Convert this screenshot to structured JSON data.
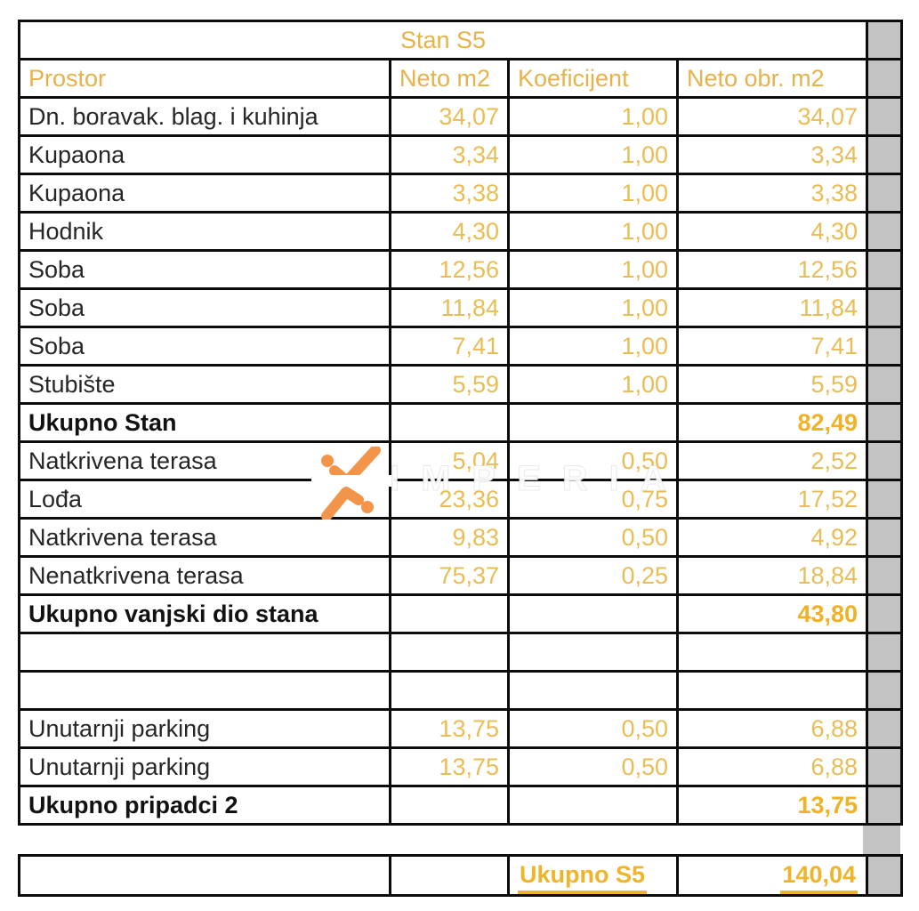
{
  "meta": {
    "colors": {
      "header_gold": "#E5B34A",
      "value_gold": "#E9BD55",
      "total_gold": "#F0B125",
      "underline_gold": "#EFB429",
      "gray_cell": "#C3C3C3",
      "border": "#0B0B0B",
      "label_text": "#262626",
      "logo_orange": "#F2944A"
    }
  },
  "table": {
    "title": "Stan S5",
    "headers": {
      "prostor": "Prostor",
      "neto_m2": "Neto m2",
      "koeficijent": "Koeficijent",
      "neto_obr_m2": "Neto obr. m2"
    },
    "rows": [
      {
        "label": "Dn. boravak. blag. i kuhinja",
        "neto_m2": "34,07",
        "koeficijent": "1,00",
        "neto_obr_m2": "34,07",
        "bold": false
      },
      {
        "label": "Kupaona",
        "neto_m2": "3,34",
        "koeficijent": "1,00",
        "neto_obr_m2": "3,34",
        "bold": false
      },
      {
        "label": "Kupaona",
        "neto_m2": "3,38",
        "koeficijent": "1,00",
        "neto_obr_m2": "3,38",
        "bold": false
      },
      {
        "label": "Hodnik",
        "neto_m2": "4,30",
        "koeficijent": "1,00",
        "neto_obr_m2": "4,30",
        "bold": false
      },
      {
        "label": "Soba",
        "neto_m2": "12,56",
        "koeficijent": "1,00",
        "neto_obr_m2": "12,56",
        "bold": false
      },
      {
        "label": "Soba",
        "neto_m2": "11,84",
        "koeficijent": "1,00",
        "neto_obr_m2": "11,84",
        "bold": false
      },
      {
        "label": "Soba",
        "neto_m2": "7,41",
        "koeficijent": "1,00",
        "neto_obr_m2": "7,41",
        "bold": false
      },
      {
        "label": "Stubište",
        "neto_m2": "5,59",
        "koeficijent": "1,00",
        "neto_obr_m2": "5,59",
        "bold": false
      },
      {
        "label": "Ukupno Stan",
        "neto_m2": "",
        "koeficijent": "",
        "neto_obr_m2": "82,49",
        "bold": true
      },
      {
        "label": "Natkrivena terasa",
        "neto_m2": "5,04",
        "koeficijent": "0,50",
        "neto_obr_m2": "2,52",
        "bold": false
      },
      {
        "label": "Lođa",
        "neto_m2": "23,36",
        "koeficijent": "0,75",
        "neto_obr_m2": "17,52",
        "bold": false
      },
      {
        "label": "Natkrivena terasa",
        "neto_m2": "9,83",
        "koeficijent": "0,50",
        "neto_obr_m2": "4,92",
        "bold": false
      },
      {
        "label": "Nenatkrivena terasa",
        "neto_m2": "75,37",
        "koeficijent": "0,25",
        "neto_obr_m2": "18,84",
        "bold": false
      },
      {
        "label": "Ukupno vanjski dio stana",
        "neto_m2": "",
        "koeficijent": "",
        "neto_obr_m2": "43,80",
        "bold": true
      },
      {
        "label": "",
        "neto_m2": "",
        "koeficijent": "",
        "neto_obr_m2": "",
        "bold": false
      },
      {
        "label": "",
        "neto_m2": "",
        "koeficijent": "",
        "neto_obr_m2": "",
        "bold": false
      },
      {
        "label": "Unutarnji parking",
        "neto_m2": "13,75",
        "koeficijent": "0,50",
        "neto_obr_m2": "6,88",
        "bold": false
      },
      {
        "label": "Unutarnji parking",
        "neto_m2": "13,75",
        "koeficijent": "0,50",
        "neto_obr_m2": "6,88",
        "bold": false
      },
      {
        "label": "Ukupno pripadci 2",
        "neto_m2": "",
        "koeficijent": "",
        "neto_obr_m2": "13,75",
        "bold": true
      }
    ],
    "footer": {
      "total_label": "Ukupno S5",
      "total_value": "140,04"
    }
  },
  "watermark": {
    "text": "IMPERIA"
  }
}
